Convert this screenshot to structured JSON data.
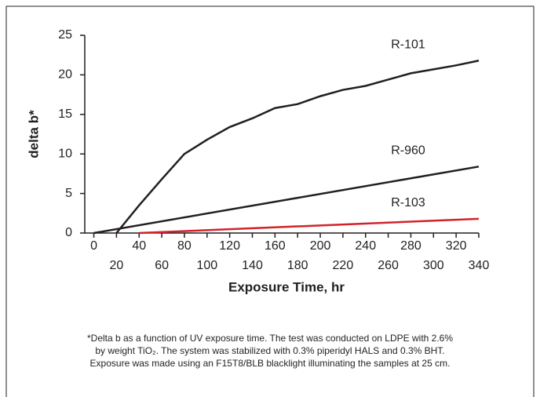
{
  "chart_data": {
    "type": "line",
    "xlabel": "Exposure Time, hr",
    "ylabel": "delta b*",
    "xlim": [
      -8,
      340
    ],
    "ylim": [
      0,
      25
    ],
    "xticks": [
      0,
      20,
      40,
      60,
      80,
      100,
      120,
      140,
      160,
      180,
      200,
      220,
      240,
      260,
      280,
      300,
      320,
      340
    ],
    "yticks": [
      0,
      5,
      10,
      15,
      20,
      25
    ],
    "grid": false,
    "series": [
      {
        "name": "R-101",
        "color": "#231f20",
        "x": [
          20,
          40,
          60,
          80,
          100,
          120,
          140,
          160,
          180,
          200,
          220,
          240,
          260,
          280,
          300,
          320,
          340
        ],
        "values": [
          0,
          3.5,
          6.8,
          10,
          11.8,
          13.4,
          14.5,
          15.8,
          16.3,
          17.3,
          18.1,
          18.6,
          19.4,
          20.2,
          20.7,
          21.2,
          21.8
        ]
      },
      {
        "name": "R-960",
        "color": "#231f20",
        "x": [
          0,
          340
        ],
        "values": [
          0,
          8.4
        ]
      },
      {
        "name": "R-103",
        "color": "#d2232a",
        "x": [
          40,
          340
        ],
        "values": [
          0,
          1.8
        ]
      }
    ],
    "footnote": [
      "*Delta b as a function of UV exposure time. The test was conducted on LDPE with 2.6%",
      "by weight TiO₂. The system was stabilized with 0.3% piperidyl HALS and 0.3% BHT.",
      "Exposure was made using an F15T8/BLB blacklight illuminating the samples at 25 cm."
    ]
  }
}
